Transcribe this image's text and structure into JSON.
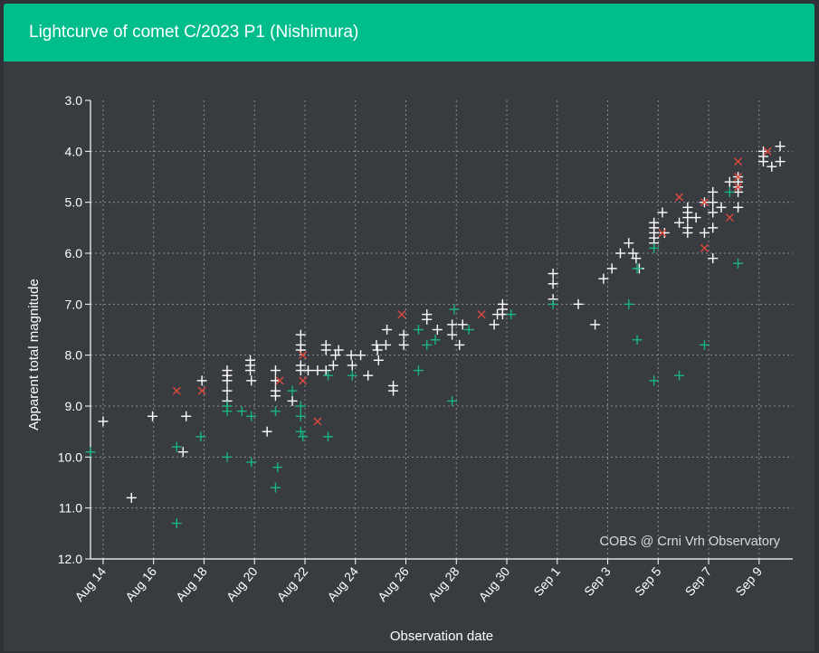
{
  "header": {
    "title": "Lightcurve of comet C/2023 P1 (Nishimura)"
  },
  "colors": {
    "header_bg": "#00bd8c",
    "panel_bg": "#383b40",
    "white_series": "#ffffff",
    "green_series": "#19b57e",
    "red_series": "#e0483c",
    "grid": "#8a8d91"
  },
  "chart_data": {
    "type": "scatter",
    "xlabel": "Observation date",
    "ylabel": "Apparent total magnitude",
    "watermark": "COBS @ Crni Vrh Observatory",
    "x_tick_labels": [
      "Aug 14",
      "Aug 16",
      "Aug 18",
      "Aug 20",
      "Aug 22",
      "Aug 24",
      "Aug 26",
      "Aug 28",
      "Aug 30",
      "Sep 1",
      "Sep 3",
      "Sep 5",
      "Sep 7",
      "Sep 9"
    ],
    "x_tick_dates": [
      "2023-08-14",
      "2023-08-16",
      "2023-08-18",
      "2023-08-20",
      "2023-08-22",
      "2023-08-24",
      "2023-08-26",
      "2023-08-28",
      "2023-08-30",
      "2023-09-01",
      "2023-09-03",
      "2023-09-05",
      "2023-09-07",
      "2023-09-09"
    ],
    "xlim": [
      "2023-08-13T12:00",
      "2023-09-10T08:00"
    ],
    "y_ticks": [
      "3.0",
      "4.0",
      "5.0",
      "6.0",
      "7.0",
      "8.0",
      "9.0",
      "10.0",
      "11.0",
      "12.0"
    ],
    "ylim": [
      12.0,
      3.0
    ],
    "y_inverted": true,
    "grid": true,
    "series": [
      {
        "marker": "plus",
        "color": "#ffffff",
        "points": [
          [
            "2023-08-14T00:00",
            9.3
          ],
          [
            "2023-08-15T03:00",
            10.8
          ],
          [
            "2023-08-15T23:00",
            9.2
          ],
          [
            "2023-08-17T04:00",
            9.9
          ],
          [
            "2023-08-17T07:00",
            9.2
          ],
          [
            "2023-08-17T22:00",
            8.5
          ],
          [
            "2023-08-18T22:00",
            8.3
          ],
          [
            "2023-08-18T22:00",
            8.4
          ],
          [
            "2023-08-18T22:00",
            8.5
          ],
          [
            "2023-08-18T22:00",
            8.7
          ],
          [
            "2023-08-18T22:00",
            8.9
          ],
          [
            "2023-08-19T20:00",
            8.1
          ],
          [
            "2023-08-19T20:00",
            8.2
          ],
          [
            "2023-08-19T20:00",
            8.3
          ],
          [
            "2023-08-19T21:00",
            8.5
          ],
          [
            "2023-08-20T12:00",
            9.5
          ],
          [
            "2023-08-20T20:00",
            8.3
          ],
          [
            "2023-08-20T20:00",
            8.5
          ],
          [
            "2023-08-20T20:00",
            8.7
          ],
          [
            "2023-08-20T20:00",
            8.8
          ],
          [
            "2023-08-21T12:00",
            8.9
          ],
          [
            "2023-08-21T20:00",
            7.6
          ],
          [
            "2023-08-21T20:00",
            7.8
          ],
          [
            "2023-08-21T20:00",
            7.9
          ],
          [
            "2023-08-21T20:00",
            8.2
          ],
          [
            "2023-08-21T20:00",
            8.3
          ],
          [
            "2023-08-22T03:00",
            8.3
          ],
          [
            "2023-08-22T12:00",
            8.3
          ],
          [
            "2023-08-22T20:00",
            7.8
          ],
          [
            "2023-08-22T20:00",
            7.9
          ],
          [
            "2023-08-22T20:00",
            8.3
          ],
          [
            "2023-08-23T03:00",
            8.2
          ],
          [
            "2023-08-23T05:00",
            8.0
          ],
          [
            "2023-08-23T08:00",
            7.9
          ],
          [
            "2023-08-23T20:00",
            8.0
          ],
          [
            "2023-08-23T21:00",
            8.2
          ],
          [
            "2023-08-24T05:00",
            8.0
          ],
          [
            "2023-08-24T12:00",
            8.4
          ],
          [
            "2023-08-24T20:00",
            7.8
          ],
          [
            "2023-08-24T21:00",
            7.9
          ],
          [
            "2023-08-24T22:00",
            8.1
          ],
          [
            "2023-08-25T05:00",
            7.8
          ],
          [
            "2023-08-25T06:00",
            7.5
          ],
          [
            "2023-08-25T12:00",
            8.6
          ],
          [
            "2023-08-25T12:00",
            8.7
          ],
          [
            "2023-08-25T22:00",
            7.6
          ],
          [
            "2023-08-25T22:00",
            7.8
          ],
          [
            "2023-08-26T20:00",
            7.2
          ],
          [
            "2023-08-26T20:00",
            7.3
          ],
          [
            "2023-08-27T06:00",
            7.5
          ],
          [
            "2023-08-27T20:00",
            7.4
          ],
          [
            "2023-08-27T20:00",
            7.6
          ],
          [
            "2023-08-28T03:00",
            7.8
          ],
          [
            "2023-08-28T06:00",
            7.4
          ],
          [
            "2023-08-29T12:00",
            7.4
          ],
          [
            "2023-08-29T15:00",
            7.2
          ],
          [
            "2023-08-29T20:00",
            7.0
          ],
          [
            "2023-08-29T20:00",
            7.1
          ],
          [
            "2023-08-29T20:00",
            7.2
          ],
          [
            "2023-08-31T20:00",
            6.4
          ],
          [
            "2023-08-31T20:00",
            6.6
          ],
          [
            "2023-08-31T20:00",
            6.9
          ],
          [
            "2023-09-01T20:00",
            7.0
          ],
          [
            "2023-09-02T12:00",
            7.4
          ],
          [
            "2023-09-02T20:00",
            6.5
          ],
          [
            "2023-09-03T04:00",
            6.3
          ],
          [
            "2023-09-03T12:00",
            6.0
          ],
          [
            "2023-09-03T20:00",
            5.8
          ],
          [
            "2023-09-04T00:00",
            6.0
          ],
          [
            "2023-09-04T03:00",
            6.1
          ],
          [
            "2023-09-04T06:00",
            6.3
          ],
          [
            "2023-09-04T20:00",
            5.4
          ],
          [
            "2023-09-04T20:00",
            5.5
          ],
          [
            "2023-09-04T20:00",
            5.6
          ],
          [
            "2023-09-04T20:00",
            5.7
          ],
          [
            "2023-09-04T20:00",
            5.8
          ],
          [
            "2023-09-05T04:00",
            5.2
          ],
          [
            "2023-09-05T06:00",
            5.6
          ],
          [
            "2023-09-05T20:00",
            5.4
          ],
          [
            "2023-09-06T04:00",
            5.1
          ],
          [
            "2023-09-06T04:00",
            5.2
          ],
          [
            "2023-09-06T04:00",
            5.3
          ],
          [
            "2023-09-06T04:00",
            5.5
          ],
          [
            "2023-09-06T04:00",
            5.6
          ],
          [
            "2023-09-06T12:00",
            5.3
          ],
          [
            "2023-09-06T20:00",
            5.0
          ],
          [
            "2023-09-06T20:00",
            5.6
          ],
          [
            "2023-09-07T04:00",
            4.8
          ],
          [
            "2023-09-07T04:00",
            5.0
          ],
          [
            "2023-09-07T04:00",
            5.2
          ],
          [
            "2023-09-07T04:00",
            5.5
          ],
          [
            "2023-09-07T04:00",
            6.1
          ],
          [
            "2023-09-07T12:00",
            5.1
          ],
          [
            "2023-09-07T20:00",
            4.6
          ],
          [
            "2023-09-08T04:00",
            4.5
          ],
          [
            "2023-09-08T04:00",
            4.6
          ],
          [
            "2023-09-08T04:00",
            4.7
          ],
          [
            "2023-09-08T04:00",
            4.8
          ],
          [
            "2023-09-08T04:00",
            5.1
          ],
          [
            "2023-09-09T04:00",
            4.0
          ],
          [
            "2023-09-09T04:00",
            4.1
          ],
          [
            "2023-09-09T04:00",
            4.2
          ],
          [
            "2023-09-09T12:00",
            4.3
          ],
          [
            "2023-09-09T20:00",
            3.9
          ],
          [
            "2023-09-09T20:00",
            4.2
          ]
        ]
      },
      {
        "marker": "plus",
        "color": "#19b57e",
        "points": [
          [
            "2023-08-13T12:00",
            9.9
          ],
          [
            "2023-08-16T22:00",
            9.8
          ],
          [
            "2023-08-16T22:00",
            11.3
          ],
          [
            "2023-08-17T21:00",
            9.6
          ],
          [
            "2023-08-18T22:00",
            9.0
          ],
          [
            "2023-08-18T22:00",
            9.1
          ],
          [
            "2023-08-18T22:00",
            10.0
          ],
          [
            "2023-08-19T12:00",
            9.1
          ],
          [
            "2023-08-19T21:00",
            9.2
          ],
          [
            "2023-08-19T21:00",
            10.1
          ],
          [
            "2023-08-20T20:00",
            9.1
          ],
          [
            "2023-08-20T20:00",
            10.6
          ],
          [
            "2023-08-20T22:00",
            10.2
          ],
          [
            "2023-08-21T12:00",
            8.7
          ],
          [
            "2023-08-21T20:00",
            9.0
          ],
          [
            "2023-08-21T20:00",
            9.2
          ],
          [
            "2023-08-21T20:00",
            9.5
          ],
          [
            "2023-08-21T22:00",
            9.6
          ],
          [
            "2023-08-22T22:00",
            8.4
          ],
          [
            "2023-08-22T22:00",
            9.6
          ],
          [
            "2023-08-23T21:00",
            8.4
          ],
          [
            "2023-08-26T12:00",
            8.3
          ],
          [
            "2023-08-26T12:00",
            7.5
          ],
          [
            "2023-08-26T20:00",
            7.8
          ],
          [
            "2023-08-27T04:00",
            7.7
          ],
          [
            "2023-08-27T20:00",
            8.9
          ],
          [
            "2023-08-27T22:00",
            7.1
          ],
          [
            "2023-08-28T12:00",
            7.5
          ],
          [
            "2023-08-30T04:00",
            7.2
          ],
          [
            "2023-08-31T20:00",
            7.0
          ],
          [
            "2023-09-03T20:00",
            7.0
          ],
          [
            "2023-09-04T04:00",
            7.7
          ],
          [
            "2023-09-04T04:00",
            6.3
          ],
          [
            "2023-09-04T20:00",
            8.5
          ],
          [
            "2023-09-04T20:00",
            5.9
          ],
          [
            "2023-09-05T20:00",
            8.4
          ],
          [
            "2023-09-06T20:00",
            7.8
          ],
          [
            "2023-09-07T20:00",
            4.8
          ],
          [
            "2023-09-08T04:00",
            6.2
          ]
        ]
      },
      {
        "marker": "x",
        "color": "#e0483c",
        "points": [
          [
            "2023-08-16T22:00",
            8.7
          ],
          [
            "2023-08-17T22:00",
            8.7
          ],
          [
            "2023-08-21T00:00",
            8.5
          ],
          [
            "2023-08-21T22:00",
            8.0
          ],
          [
            "2023-08-21T22:00",
            8.5
          ],
          [
            "2023-08-22T12:00",
            9.3
          ],
          [
            "2023-08-25T20:00",
            7.2
          ],
          [
            "2023-08-29T00:00",
            7.2
          ],
          [
            "2023-09-05T04:00",
            5.6
          ],
          [
            "2023-09-05T20:00",
            4.9
          ],
          [
            "2023-09-06T20:00",
            5.0
          ],
          [
            "2023-09-06T20:00",
            5.9
          ],
          [
            "2023-09-07T20:00",
            5.3
          ],
          [
            "2023-09-08T04:00",
            4.2
          ],
          [
            "2023-09-08T04:00",
            4.5
          ],
          [
            "2023-09-08T04:00",
            4.7
          ],
          [
            "2023-09-09T08:00",
            4.0
          ]
        ]
      }
    ]
  }
}
